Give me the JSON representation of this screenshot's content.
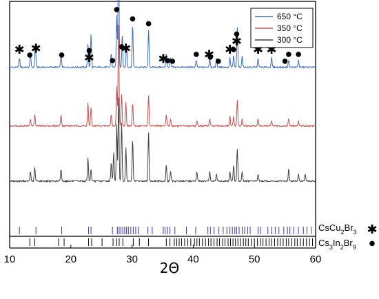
{
  "chart_data": {
    "type": "line",
    "xlabel": "2Θ",
    "xlim": [
      10,
      60
    ],
    "xticks": [
      10,
      20,
      30,
      40,
      50,
      60
    ],
    "legend_position": "top-right",
    "series": [
      {
        "name": "650 °C",
        "color": "#3a6cc9",
        "baseline_fraction": 0.72,
        "peaks": [
          [
            11.6,
            0.04
          ],
          [
            13.4,
            0.06
          ],
          [
            14.2,
            0.1
          ],
          [
            18.4,
            0.06
          ],
          [
            22.8,
            0.1
          ],
          [
            23.3,
            0.14
          ],
          [
            26.6,
            0.06
          ],
          [
            27.5,
            0.22
          ],
          [
            27.8,
            0.58
          ],
          [
            28.4,
            0.14
          ],
          [
            29.1,
            0.1
          ],
          [
            30.1,
            0.18
          ],
          [
            32.7,
            0.16
          ],
          [
            35.6,
            0.06
          ],
          [
            36.3,
            0.04
          ],
          [
            40.5,
            0.03
          ],
          [
            42.7,
            0.04
          ],
          [
            43.8,
            0.04
          ],
          [
            46.0,
            0.04
          ],
          [
            46.6,
            0.05
          ],
          [
            47.2,
            0.17
          ],
          [
            48.0,
            0.05
          ],
          [
            50.6,
            0.04
          ],
          [
            52.8,
            0.04
          ],
          [
            55.6,
            0.03
          ],
          [
            57.2,
            0.03
          ]
        ],
        "markers": [
          {
            "x": 11.6,
            "type": "asterisk"
          },
          {
            "x": 13.3,
            "type": "dot"
          },
          {
            "x": 14.3,
            "type": "asterisk"
          },
          {
            "x": 18.5,
            "type": "dot"
          },
          {
            "x": 23.0,
            "type": "asterisk"
          },
          {
            "x": 23.0,
            "type": "dot"
          },
          {
            "x": 26.8,
            "type": "dot"
          },
          {
            "x": 27.5,
            "type": "dot"
          },
          {
            "x": 27.8,
            "type": "asterisk"
          },
          {
            "x": 27.8,
            "type": "dot"
          },
          {
            "x": 28.3,
            "type": "dot"
          },
          {
            "x": 29.0,
            "type": "asterisk"
          },
          {
            "x": 30.1,
            "type": "dot"
          },
          {
            "x": 32.7,
            "type": "dot"
          },
          {
            "x": 35.1,
            "type": "asterisk"
          },
          {
            "x": 35.8,
            "type": "dot"
          },
          {
            "x": 36.6,
            "type": "dot"
          },
          {
            "x": 40.5,
            "type": "dot"
          },
          {
            "x": 42.6,
            "type": "asterisk"
          },
          {
            "x": 42.8,
            "type": "dot"
          },
          {
            "x": 44.1,
            "type": "dot"
          },
          {
            "x": 46.0,
            "type": "asterisk"
          },
          {
            "x": 46.6,
            "type": "dot"
          },
          {
            "x": 47.1,
            "type": "asterisk"
          },
          {
            "x": 47.1,
            "type": "dot"
          },
          {
            "x": 50.6,
            "type": "asterisk"
          },
          {
            "x": 50.6,
            "type": "dot"
          },
          {
            "x": 52.8,
            "type": "asterisk"
          },
          {
            "x": 52.8,
            "type": "dot"
          },
          {
            "x": 55.0,
            "type": "dot"
          },
          {
            "x": 55.6,
            "type": "dot"
          },
          {
            "x": 57.2,
            "type": "dot"
          }
        ]
      },
      {
        "name": "350 °C",
        "color": "#c9504e",
        "baseline_fraction": 0.47,
        "peaks": [
          [
            13.4,
            0.03
          ],
          [
            14.1,
            0.05
          ],
          [
            18.4,
            0.05
          ],
          [
            22.8,
            0.1
          ],
          [
            23.3,
            0.08
          ],
          [
            26.6,
            0.05
          ],
          [
            27.5,
            0.17
          ],
          [
            27.8,
            0.44
          ],
          [
            28.3,
            0.14
          ],
          [
            29.0,
            0.1
          ],
          [
            30.1,
            0.1
          ],
          [
            32.7,
            0.13
          ],
          [
            35.6,
            0.05
          ],
          [
            36.3,
            0.03
          ],
          [
            40.6,
            0.02
          ],
          [
            42.7,
            0.03
          ],
          [
            46.0,
            0.04
          ],
          [
            46.6,
            0.04
          ],
          [
            47.2,
            0.11
          ],
          [
            48.0,
            0.03
          ],
          [
            50.6,
            0.03
          ],
          [
            52.8,
            0.02
          ],
          [
            55.6,
            0.03
          ],
          [
            57.2,
            0.02
          ]
        ],
        "markers": []
      },
      {
        "name": "300 °C",
        "color": "#404040",
        "baseline_fraction": 0.235,
        "peaks": [
          [
            13.4,
            0.04
          ],
          [
            14.1,
            0.06
          ],
          [
            18.4,
            0.05
          ],
          [
            22.8,
            0.1
          ],
          [
            23.3,
            0.05
          ],
          [
            26.6,
            0.08
          ],
          [
            27.0,
            0.12
          ],
          [
            27.5,
            0.24
          ],
          [
            27.8,
            0.36
          ],
          [
            28.3,
            0.25
          ],
          [
            29.0,
            0.14
          ],
          [
            30.1,
            0.18
          ],
          [
            32.7,
            0.21
          ],
          [
            35.6,
            0.07
          ],
          [
            36.3,
            0.04
          ],
          [
            40.6,
            0.04
          ],
          [
            42.7,
            0.04
          ],
          [
            43.8,
            0.03
          ],
          [
            46.0,
            0.04
          ],
          [
            46.6,
            0.07
          ],
          [
            47.2,
            0.14
          ],
          [
            48.0,
            0.04
          ],
          [
            50.6,
            0.03
          ],
          [
            55.6,
            0.05
          ],
          [
            57.2,
            0.03
          ],
          [
            58.3,
            0.03
          ]
        ],
        "markers": []
      }
    ],
    "reference_patterns": [
      {
        "label_main": "CsCu",
        "sub1": "2",
        "mid": "Br",
        "sub2": "3",
        "tail_main": "",
        "sub3": "",
        "symbol": "✱",
        "color": "#3333bb",
        "positions": [
          11.6,
          14.3,
          18.5,
          22.9,
          23.3,
          26.8,
          27.6,
          27.9,
          28.2,
          28.5,
          28.8,
          29.1,
          29.4,
          29.8,
          30.2,
          30.6,
          31.0,
          32.6,
          33.3,
          35.1,
          35.4,
          35.8,
          36.2,
          37.0,
          38.9,
          40.4,
          42.4,
          42.8,
          43.4,
          44.2,
          44.9,
          45.5,
          46.0,
          46.4,
          46.8,
          47.1,
          47.5,
          48.0,
          48.4,
          48.9,
          49.3,
          50.6,
          51.0,
          52.2,
          52.8,
          53.4,
          54.0,
          54.8,
          55.4,
          55.8,
          56.4,
          57.2,
          58.0,
          58.6,
          59.3
        ]
      },
      {
        "label_main": "Cs",
        "sub1": "3",
        "mid": "In",
        "sub2": "2",
        "tail_main": "Br",
        "sub3": "9",
        "symbol": "●",
        "color": "#000000",
        "positions": [
          13.3,
          14.1,
          18.0,
          18.9,
          22.9,
          23.4,
          25.1,
          26.9,
          27.5,
          27.9,
          28.5,
          30.2,
          31.2,
          32.7,
          35.6,
          36.2,
          36.9,
          37.3,
          37.7,
          38.1,
          38.6,
          39.1,
          39.6,
          40.2,
          40.6,
          41.0,
          41.5,
          42.0,
          42.5,
          42.9,
          43.4,
          43.9,
          44.3,
          44.8,
          45.2,
          45.7,
          46.1,
          46.5,
          46.9,
          47.3,
          47.7,
          48.2,
          48.6,
          49.0,
          49.5,
          50.0,
          50.5,
          51.0,
          51.4,
          51.9,
          52.4,
          52.8,
          53.3,
          53.8,
          54.2,
          54.7,
          55.2,
          55.6,
          56.1,
          56.6,
          57.0,
          57.5,
          58.0,
          58.5,
          59.0,
          59.5
        ]
      }
    ],
    "marker_symbols": {
      "asterisk": "✱",
      "dot": "●"
    }
  }
}
